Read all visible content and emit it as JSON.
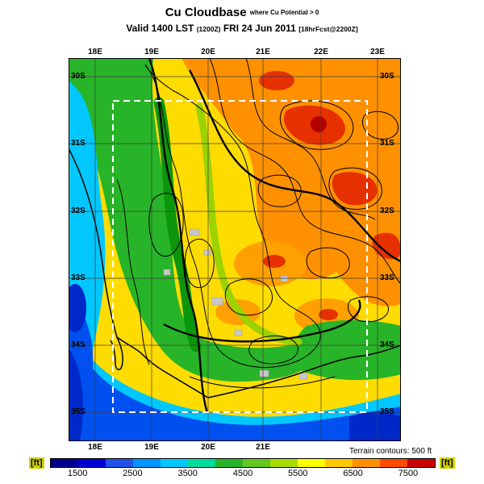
{
  "header": {
    "title": "Cu Cloudbase",
    "title_qualifier": "where Cu Potential > 0",
    "valid_prefix": "Valid 1400 LST",
    "valid_zulu": "(1200Z)",
    "valid_date": "FRI 24 Jun 2011",
    "valid_fcst": "[18hrFcst@2200Z]"
  },
  "map": {
    "lon_labels_top": [
      "18E",
      "19E",
      "20E",
      "21E",
      "22E",
      "23E"
    ],
    "lon_labels_bottom": [
      "18E",
      "19E",
      "20E",
      "21E"
    ],
    "lat_labels_left": [
      "30S",
      "31S",
      "32S",
      "33S",
      "34S",
      "35S"
    ],
    "lat_labels_right": [
      "30S",
      "31S",
      "32S",
      "33S",
      "34S",
      "35S"
    ]
  },
  "legend": {
    "unit_left": "[ft]",
    "unit_right": "[ft]",
    "ticks": [
      "1500",
      "2500",
      "3500",
      "4500",
      "5500",
      "6500",
      "7500"
    ],
    "note": "Terrain contours: 500 ft",
    "range_ft": [
      1000,
      8000
    ],
    "colorbar_colors": [
      "#00008c",
      "#0000d2",
      "#2253e6",
      "#0096ff",
      "#00c8ff",
      "#00dc9b",
      "#28b428",
      "#64c81e",
      "#aadc00",
      "#ffff00",
      "#ffc800",
      "#ff9100",
      "#ff4b00",
      "#c80000"
    ]
  }
}
